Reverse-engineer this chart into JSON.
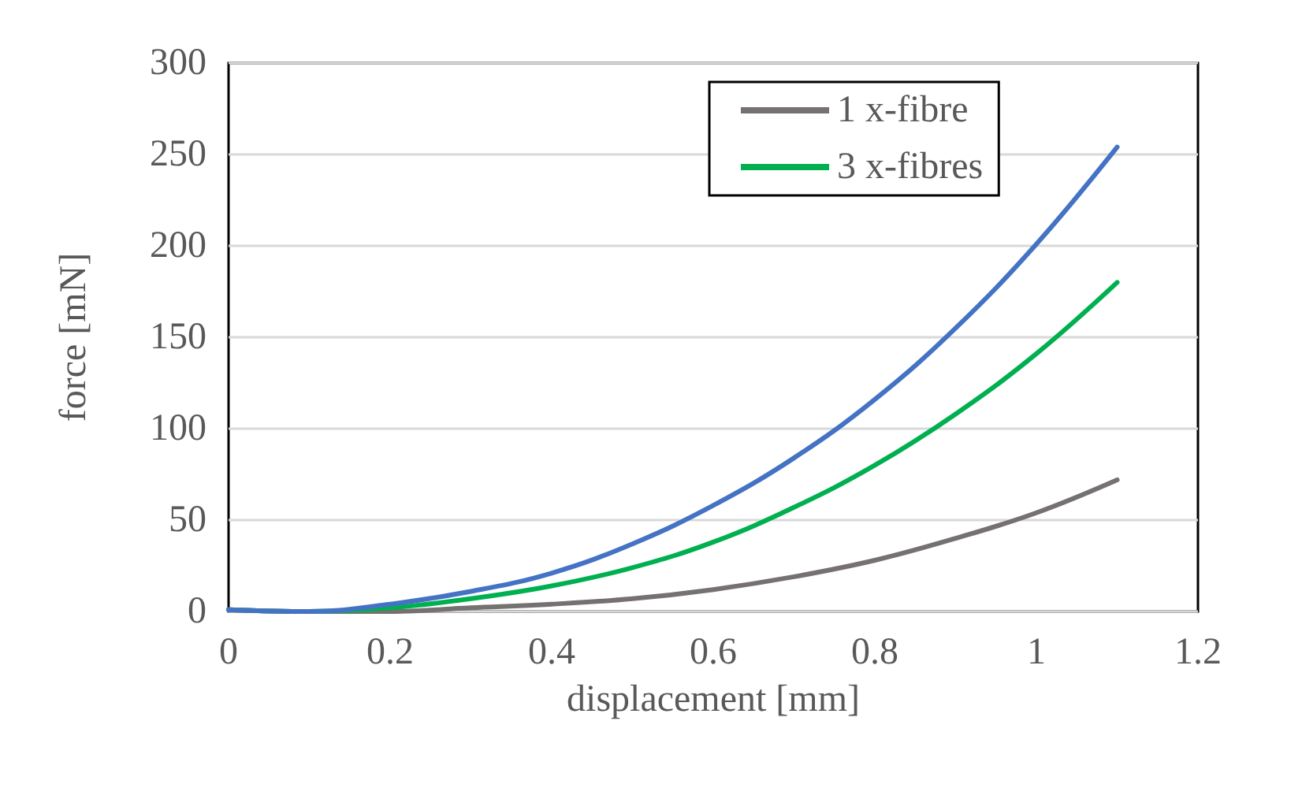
{
  "chart_data": {
    "type": "line",
    "xlabel": "displacement [mm]",
    "ylabel": "force [mN]",
    "x": [
      0,
      0.1,
      0.2,
      0.3,
      0.4,
      0.5,
      0.6,
      0.7,
      0.8,
      0.9,
      1.0,
      1.1
    ],
    "series": [
      {
        "name": "1 x-fibre",
        "color": "#767171",
        "values": [
          1,
          0,
          0,
          2,
          4,
          7,
          12,
          19,
          28,
          40,
          54,
          72
        ]
      },
      {
        "name": "3 x-fibres",
        "color": "#00b050",
        "values": [
          1,
          0,
          2,
          7,
          14,
          24,
          38,
          57,
          80,
          108,
          141,
          180
        ]
      },
      {
        "color": "#4472c4",
        "values": [
          1,
          0,
          4,
          11,
          21,
          37,
          58,
          84,
          116,
          155,
          201,
          254
        ]
      }
    ],
    "xlim": [
      0,
      1.2
    ],
    "xticks": [
      0,
      0.2,
      0.4,
      0.6,
      0.8,
      1,
      1.2
    ],
    "ylim": [
      0,
      300
    ],
    "yticks": [
      0,
      50,
      100,
      150,
      200,
      250,
      300
    ],
    "grid": "y",
    "legend": "top",
    "marker": "none",
    "line_style": "solid"
  }
}
